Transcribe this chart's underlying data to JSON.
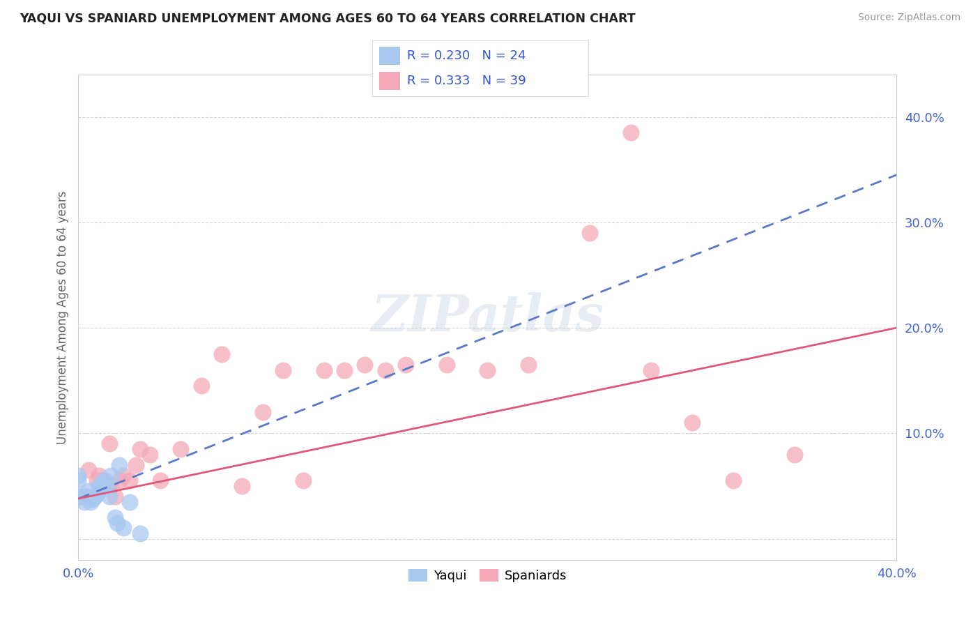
{
  "title": "YAQUI VS SPANIARD UNEMPLOYMENT AMONG AGES 60 TO 64 YEARS CORRELATION CHART",
  "source": "Source: ZipAtlas.com",
  "ylabel": "Unemployment Among Ages 60 to 64 years",
  "xlim": [
    0.0,
    0.4
  ],
  "ylim": [
    -0.02,
    0.44
  ],
  "yticks": [
    0.0,
    0.1,
    0.2,
    0.3,
    0.4
  ],
  "ytick_labels": [
    "",
    "10.0%",
    "20.0%",
    "30.0%",
    "40.0%"
  ],
  "xtick_left_label": "0.0%",
  "xtick_right_label": "40.0%",
  "yaqui_R": 0.23,
  "yaqui_N": 24,
  "spaniard_R": 0.333,
  "spaniard_N": 39,
  "yaqui_color": "#a8c8f0",
  "spaniard_color": "#f4a8b8",
  "yaqui_line_color": "#5878c8",
  "spaniard_line_color": "#e05878",
  "watermark_text": "ZIPatlas",
  "background_color": "#ffffff",
  "yaqui_x": [
    0.0,
    0.0,
    0.0,
    0.002,
    0.003,
    0.004,
    0.005,
    0.006,
    0.007,
    0.008,
    0.009,
    0.01,
    0.011,
    0.012,
    0.013,
    0.014,
    0.015,
    0.016,
    0.018,
    0.019,
    0.02,
    0.022,
    0.025,
    0.03
  ],
  "yaqui_y": [
    0.04,
    0.055,
    0.06,
    0.04,
    0.035,
    0.04,
    0.045,
    0.035,
    0.038,
    0.04,
    0.042,
    0.05,
    0.05,
    0.055,
    0.055,
    0.048,
    0.04,
    0.06,
    0.02,
    0.015,
    0.07,
    0.01,
    0.035,
    0.005
  ],
  "spaniard_x": [
    0.0,
    0.003,
    0.005,
    0.007,
    0.009,
    0.01,
    0.012,
    0.013,
    0.015,
    0.016,
    0.018,
    0.02,
    0.022,
    0.025,
    0.028,
    0.03,
    0.035,
    0.04,
    0.05,
    0.06,
    0.07,
    0.08,
    0.09,
    0.1,
    0.11,
    0.12,
    0.13,
    0.14,
    0.15,
    0.16,
    0.18,
    0.2,
    0.22,
    0.25,
    0.27,
    0.28,
    0.3,
    0.32,
    0.35
  ],
  "spaniard_y": [
    0.04,
    0.04,
    0.065,
    0.038,
    0.055,
    0.06,
    0.055,
    0.05,
    0.09,
    0.05,
    0.04,
    0.055,
    0.06,
    0.055,
    0.07,
    0.085,
    0.08,
    0.055,
    0.085,
    0.145,
    0.175,
    0.05,
    0.12,
    0.16,
    0.055,
    0.16,
    0.16,
    0.165,
    0.16,
    0.165,
    0.165,
    0.16,
    0.165,
    0.29,
    0.385,
    0.16,
    0.11,
    0.055,
    0.08
  ],
  "yaqui_trend_x0": 0.0,
  "yaqui_trend_y0": 0.038,
  "yaqui_trend_x1": 0.4,
  "yaqui_trend_y1": 0.345,
  "spaniard_trend_x0": 0.0,
  "spaniard_trend_y0": 0.038,
  "spaniard_trend_x1": 0.4,
  "spaniard_trend_y1": 0.2
}
